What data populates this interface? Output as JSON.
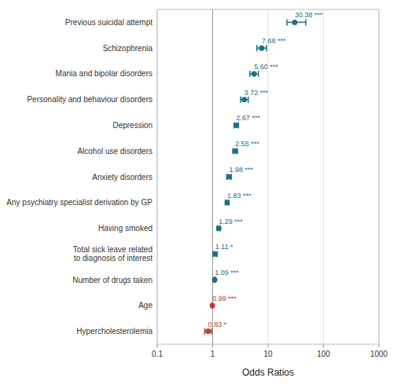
{
  "chart_data": {
    "type": "forest",
    "xlabel": "Odds Ratios",
    "categories": [
      "Previous suicidal attempt",
      "Schizophrenia",
      "Mania and bipolar disorders",
      "Personality and behaviour disorders",
      "Depression",
      "Alcohol use disorders",
      "Anxiety disorders",
      "Any psychiatry specialist derivation by GP",
      "Having smoked",
      "Total sick leave related\nto diagnosis of interest",
      "Number of drugs taken",
      "Age",
      "Hypercholesterolemia"
    ],
    "values": [
      30.38,
      7.68,
      5.6,
      3.72,
      2.67,
      2.55,
      1.98,
      1.83,
      1.29,
      1.11,
      1.09,
      0.99,
      0.83
    ],
    "ci_low": [
      22.0,
      6.3,
      4.7,
      3.2,
      2.45,
      2.32,
      1.8,
      1.7,
      1.21,
      1.02,
      1.06,
      0.984,
      0.72
    ],
    "ci_high": [
      48.0,
      9.4,
      6.7,
      4.4,
      2.93,
      2.8,
      2.18,
      1.97,
      1.38,
      1.21,
      1.12,
      0.996,
      0.96
    ],
    "value_labels": [
      "30.38 ***",
      "7.68 ***",
      "5.60 ***",
      "3.72 ***",
      "2.67 ***",
      "2.55 ***",
      "1.98 ***",
      "1.83 ***",
      "1.29 ***",
      "1.11 *",
      "1.09 ***",
      "0.99 ***",
      "0.83 *"
    ],
    "data_labels": true,
    "colors": [
      "#1d6f8c",
      "#1d6f8c",
      "#1d6f8c",
      "#1d6f8c",
      "#1d6f8c",
      "#1d6f8c",
      "#1d6f8c",
      "#1d6f8c",
      "#1d6f8c",
      "#1d6f8c",
      "#1d6f8c",
      "#c0392b",
      "#c0392b"
    ],
    "reference_line": 1,
    "log": "x",
    "grid": true,
    "xlim": [
      0.1,
      1000
    ],
    "xticks": [
      0.1,
      1,
      10,
      100,
      1000
    ]
  }
}
